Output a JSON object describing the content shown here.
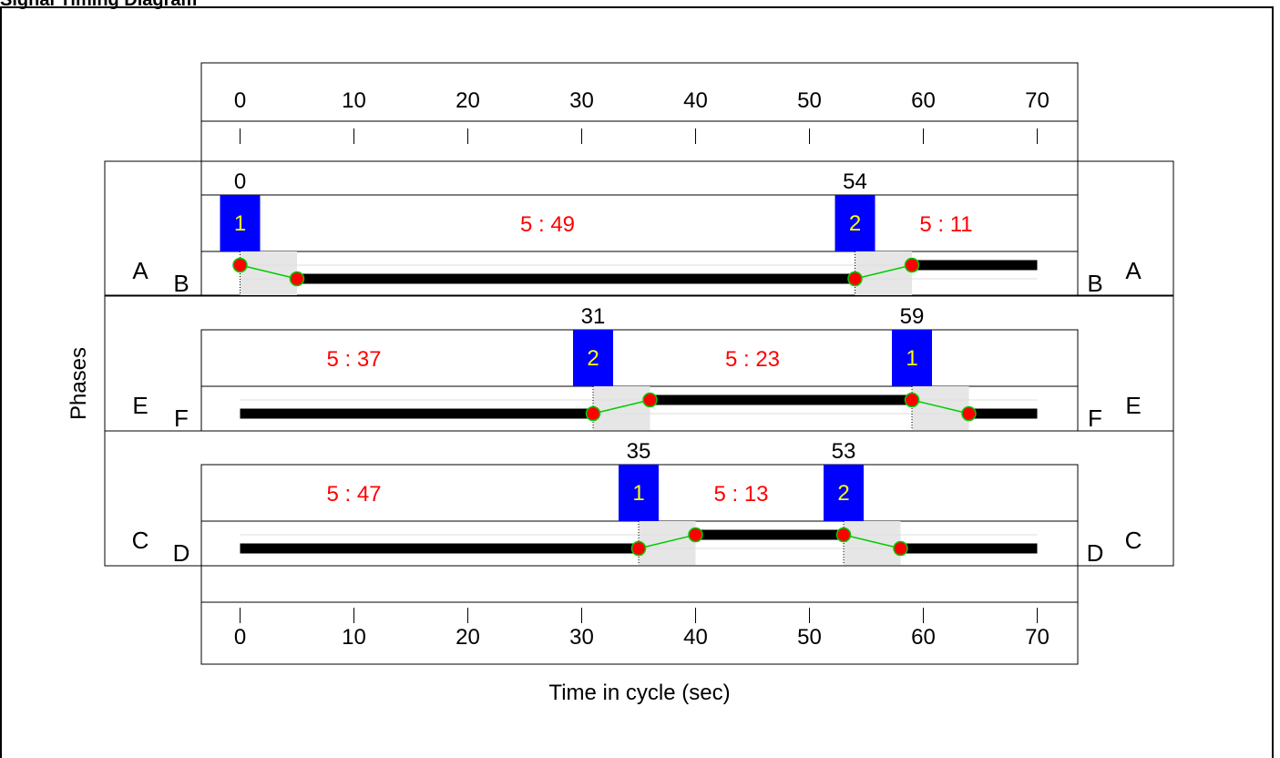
{
  "title": "Signal Timing Diagram",
  "axis": {
    "label": "Time in cycle (sec)",
    "ticks": [
      0,
      10,
      20,
      30,
      40,
      50,
      60,
      70
    ],
    "range": [
      0,
      70
    ]
  },
  "y_label": "Phases",
  "colors": {
    "marker_box": "#0000ff",
    "marker_text": "#ffff00",
    "split_text": "#ff0000",
    "node_fill": "#ff0000",
    "node_stroke": "#00cc00",
    "connector": "#00cc00",
    "transition_shade": "#e6e6e6",
    "bar": "#000000"
  },
  "rings": [
    {
      "left_outer": "A",
      "left_inner": "B",
      "right_inner": "B",
      "right_outer": "A",
      "markers": [
        {
          "time": 0,
          "label": "0",
          "number": "1"
        },
        {
          "time": 54,
          "label": "54",
          "number": "2"
        }
      ],
      "splits": [
        {
          "time": 27,
          "text": "5 : 49"
        },
        {
          "time": 62,
          "text": "5 : 11"
        }
      ],
      "bar_segments": [
        {
          "start": 5,
          "end": 54,
          "level": "low"
        },
        {
          "start": 59,
          "end": 70,
          "level": "high"
        }
      ],
      "transitions": [
        {
          "from": 0,
          "to": 5,
          "dir": "down"
        },
        {
          "from": 54,
          "to": 59,
          "dir": "up"
        }
      ]
    },
    {
      "left_outer": "E",
      "left_inner": "F",
      "right_inner": "F",
      "right_outer": "E",
      "markers": [
        {
          "time": 31,
          "label": "31",
          "number": "2"
        },
        {
          "time": 59,
          "label": "59",
          "number": "1"
        }
      ],
      "splits": [
        {
          "time": 10,
          "text": "5 : 37"
        },
        {
          "time": 45,
          "text": "5 : 23"
        }
      ],
      "bar_segments": [
        {
          "start": 0,
          "end": 31,
          "level": "low"
        },
        {
          "start": 36,
          "end": 59,
          "level": "high"
        },
        {
          "start": 64,
          "end": 70,
          "level": "low"
        }
      ],
      "transitions": [
        {
          "from": 31,
          "to": 36,
          "dir": "up"
        },
        {
          "from": 59,
          "to": 64,
          "dir": "down"
        }
      ]
    },
    {
      "left_outer": "C",
      "left_inner": "D",
      "right_inner": "D",
      "right_outer": "C",
      "markers": [
        {
          "time": 35,
          "label": "35",
          "number": "1"
        },
        {
          "time": 53,
          "label": "53",
          "number": "2"
        }
      ],
      "splits": [
        {
          "time": 10,
          "text": "5 : 47"
        },
        {
          "time": 44,
          "text": "5 : 13"
        }
      ],
      "bar_segments": [
        {
          "start": 0,
          "end": 35,
          "level": "low"
        },
        {
          "start": 40,
          "end": 53,
          "level": "high"
        },
        {
          "start": 58,
          "end": 70,
          "level": "low"
        }
      ],
      "transitions": [
        {
          "from": 35,
          "to": 40,
          "dir": "up"
        },
        {
          "from": 53,
          "to": 58,
          "dir": "down"
        }
      ]
    }
  ]
}
